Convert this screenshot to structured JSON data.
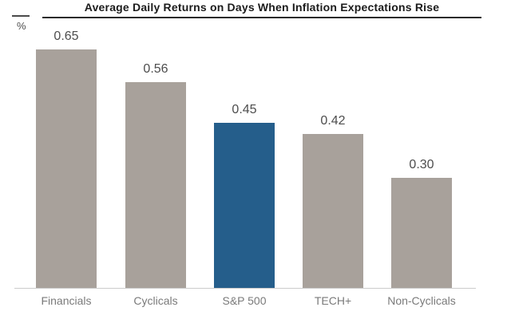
{
  "chart_data": {
    "type": "bar",
    "title": "Average Daily Returns on Days When Inflation Expectations Rise",
    "xlabel": "",
    "ylabel": "%",
    "categories": [
      "Financials",
      "Cyclicals",
      "S&P 500",
      "TECH+",
      "Non-Cyclicals"
    ],
    "values": [
      0.65,
      0.56,
      0.45,
      0.42,
      0.3
    ],
    "value_labels": [
      "0.65",
      "0.56",
      "0.45",
      "0.42",
      "0.30"
    ],
    "highlight_index": 2,
    "ylim": [
      0,
      0.78
    ],
    "grid": false,
    "legend": "none",
    "colors": {
      "bar_default": "#a8a19b",
      "bar_highlight": "#255e8b",
      "title_text": "#1c1c1c",
      "value_text": "#4d4d4d",
      "category_text": "#7a7a7a",
      "axis_line": "#cccccc"
    }
  }
}
